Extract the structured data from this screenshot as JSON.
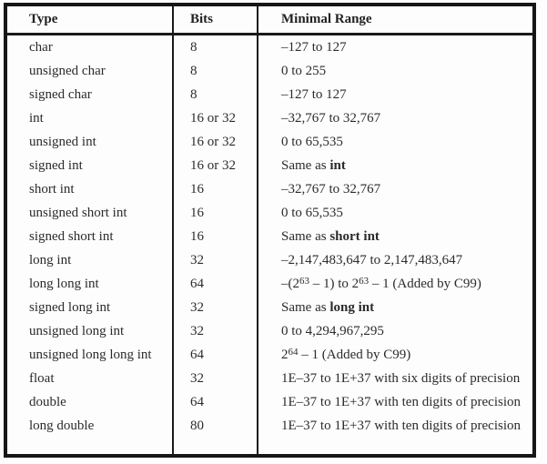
{
  "table": {
    "columns": [
      {
        "label": "Type"
      },
      {
        "label": "Bits"
      },
      {
        "label": "Minimal Range"
      }
    ],
    "rows": [
      {
        "type": "char",
        "bits": "8",
        "range": [
          {
            "t": "–127 to 127"
          }
        ]
      },
      {
        "type": "unsigned char",
        "bits": "8",
        "range": [
          {
            "t": "0 to 255"
          }
        ]
      },
      {
        "type": "signed char",
        "bits": "8",
        "range": [
          {
            "t": "–127 to 127"
          }
        ]
      },
      {
        "type": "int",
        "bits": "16 or 32",
        "range": [
          {
            "t": "–32,767 to 32,767"
          }
        ]
      },
      {
        "type": "unsigned int",
        "bits": "16 or 32",
        "range": [
          {
            "t": "0 to 65,535"
          }
        ]
      },
      {
        "type": "signed int",
        "bits": "16 or 32",
        "range": [
          {
            "t": "Same as "
          },
          {
            "t": "int",
            "bold": true
          }
        ]
      },
      {
        "type": "short int",
        "bits": "16",
        "range": [
          {
            "t": "–32,767 to 32,767"
          }
        ]
      },
      {
        "type": "unsigned short int",
        "bits": "16",
        "range": [
          {
            "t": "0 to 65,535"
          }
        ]
      },
      {
        "type": "signed short int",
        "bits": "16",
        "range": [
          {
            "t": "Same as "
          },
          {
            "t": "short int",
            "bold": true
          }
        ]
      },
      {
        "type": "long int",
        "bits": "32",
        "range": [
          {
            "t": "–2,147,483,647 to 2,147,483,647"
          }
        ]
      },
      {
        "type": "long long int",
        "bits": "64",
        "range": [
          {
            "t": "–(2"
          },
          {
            "t": "63",
            "sup": true
          },
          {
            "t": " – 1) to 2"
          },
          {
            "t": "63",
            "sup": true
          },
          {
            "t": " – 1 (Added by C99)"
          }
        ]
      },
      {
        "type": "signed long int",
        "bits": "32",
        "range": [
          {
            "t": "Same as "
          },
          {
            "t": "long int",
            "bold": true
          }
        ]
      },
      {
        "type": "unsigned long int",
        "bits": "32",
        "range": [
          {
            "t": "0 to 4,294,967,295"
          }
        ]
      },
      {
        "type": "unsigned long long int",
        "bits": "64",
        "range": [
          {
            "t": "2"
          },
          {
            "t": "64",
            "sup": true
          },
          {
            "t": " – 1 (Added by C99)"
          }
        ]
      },
      {
        "type": "float",
        "bits": "32",
        "range": [
          {
            "t": "1E–37 to 1E+37 with six digits of precision"
          }
        ]
      },
      {
        "type": "double",
        "bits": "64",
        "range": [
          {
            "t": "1E–37 to 1E+37 with ten digits of precision"
          }
        ]
      },
      {
        "type": "long double",
        "bits": "80",
        "range": [
          {
            "t": "1E–37 to 1E+37 with ten digits of precision"
          }
        ]
      }
    ]
  }
}
